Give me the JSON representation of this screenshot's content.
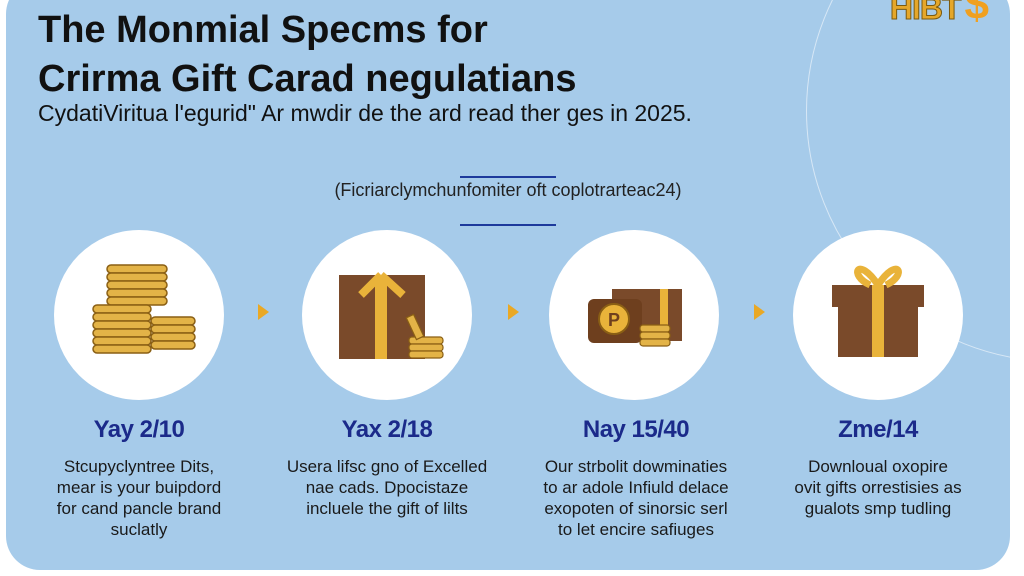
{
  "logo": {
    "text": "HIBT",
    "symbol": "$"
  },
  "header": {
    "title_line1": "The Monmial Specms for",
    "title_line2": "Crirma Gift Carad negulatians",
    "subtitle": "CydatiViritua l'egurid\" Ar mwdir de the ard read ther ges in 2025."
  },
  "note": "(Ficriarclymchunfomiter oft coplotrarteac24)",
  "colors": {
    "background": "#a6cbea",
    "date_text": "#1b2a8a",
    "accent": "#e9a825",
    "gift_box": "#7a4a2a"
  },
  "steps": [
    {
      "icon": "coin-stack-icon",
      "date": "Yay 2/10",
      "lines": [
        "Stcupyclyntree Dits,",
        "mear is your buipdord",
        "for cand pancle brand",
        "suclatly"
      ]
    },
    {
      "icon": "gift-box-with-coins-icon",
      "date": "Yax 2/18",
      "lines": [
        "Usera lifsc gno of Excelled",
        "nae cads. Dpocistaze",
        "incluele the gift of lilts"
      ]
    },
    {
      "icon": "gift-card-with-coins-icon",
      "date": "Nay 15/40",
      "lines": [
        "Our strbolit dowminaties",
        "to ar adole Infiuld delace",
        "exopoten of sinorsic serl",
        "to let encire safiuges"
      ]
    },
    {
      "icon": "gift-box-icon",
      "date": "Zme/14",
      "lines": [
        "Downloual oxopire",
        "ovit gifts orrestisies as",
        "gualots smp tudling"
      ]
    }
  ]
}
